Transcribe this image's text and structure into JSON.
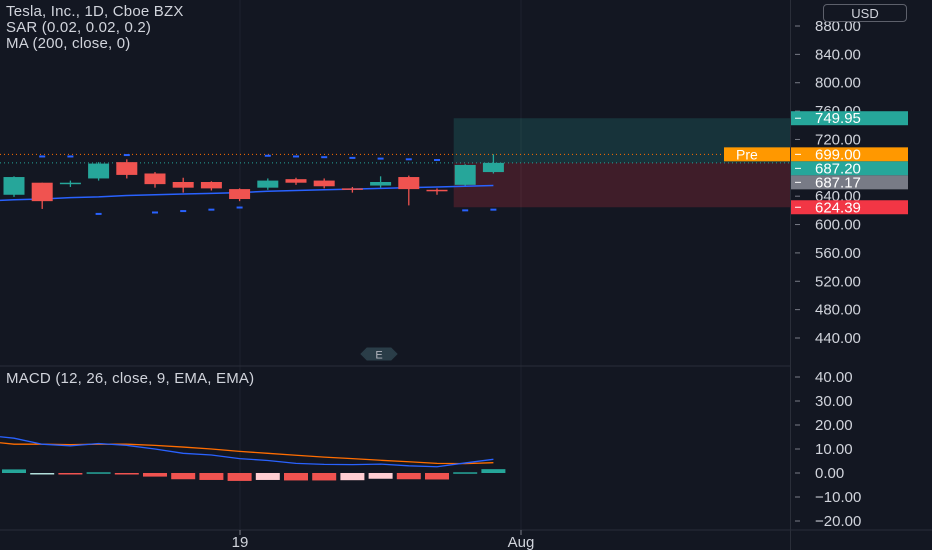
{
  "legend": {
    "symbol": "Tesla, Inc., 1D, Cboe BZX",
    "sar": "SAR (0.02, 0.02, 0.2)",
    "ma": "MA (200, close, 0)",
    "macd": "MACD (12, 26, close, 9, EMA, EMA)"
  },
  "currency": "USD",
  "earnings_marker": "E",
  "price_badges": [
    {
      "label": "749.95",
      "color": "#26a69a",
      "price": 749.95
    },
    {
      "label": "699.00",
      "prefix": "Pre",
      "color": "#ff9800",
      "price": 699.0
    },
    {
      "label": "687.20",
      "color": "#26a69a",
      "price": 687.2
    },
    {
      "label": "687.17",
      "color": "#787b86",
      "price": 687.17
    },
    {
      "label": "624.39",
      "color": "#f23645",
      "price": 624.39
    }
  ],
  "colors": {
    "up": "#26a69a",
    "down": "#f05350",
    "sar": "#2962ff",
    "ma": "#2962ff",
    "macd_line": "#2962ff",
    "signal_line": "#ff6d00",
    "target_zone": "#26a69a",
    "stop_zone": "#f23645"
  },
  "chart_data": [
    {
      "type": "candlestick",
      "y_ticks": [
        "880.00",
        "840.00",
        "800.00",
        "760.00",
        "720.00",
        "680.00",
        "640.00",
        "600.00",
        "560.00",
        "520.00",
        "480.00",
        "440.00"
      ],
      "ylim": [
        425,
        890
      ],
      "x_ticks": [
        "19",
        "Aug"
      ],
      "candles": [
        {
          "o": 642,
          "h": 668,
          "l": 639,
          "c": 667
        },
        {
          "o": 659,
          "h": 659,
          "l": 622,
          "c": 633
        },
        {
          "o": 657,
          "h": 662,
          "l": 653,
          "c": 659
        },
        {
          "o": 665,
          "h": 688,
          "l": 662,
          "c": 686
        },
        {
          "o": 688,
          "h": 692,
          "l": 665,
          "c": 670
        },
        {
          "o": 672,
          "h": 674,
          "l": 652,
          "c": 657
        },
        {
          "o": 660,
          "h": 666,
          "l": 645,
          "c": 652
        },
        {
          "o": 660,
          "h": 661,
          "l": 648,
          "c": 651
        },
        {
          "o": 650,
          "h": 651,
          "l": 633,
          "c": 636
        },
        {
          "o": 652,
          "h": 665,
          "l": 649,
          "c": 662
        },
        {
          "o": 664,
          "h": 666,
          "l": 656,
          "c": 659
        },
        {
          "o": 662,
          "h": 665,
          "l": 651,
          "c": 654
        },
        {
          "o": 651,
          "h": 653,
          "l": 645,
          "c": 650
        },
        {
          "o": 655,
          "h": 668,
          "l": 652,
          "c": 660
        },
        {
          "o": 667,
          "h": 669,
          "l": 627,
          "c": 650
        },
        {
          "o": 649,
          "h": 651,
          "l": 642,
          "c": 647
        },
        {
          "o": 656,
          "h": 685,
          "l": 655,
          "c": 684
        },
        {
          "o": 674,
          "h": 699,
          "l": 672,
          "c": 687
        }
      ],
      "sar_points": [
        null,
        696,
        696,
        615,
        698,
        617,
        619,
        621,
        624,
        697,
        696,
        695,
        694,
        693,
        692,
        691,
        620,
        621
      ],
      "ma_line": [
        635,
        636,
        638,
        639,
        641,
        642,
        643,
        644,
        645,
        647,
        648,
        649,
        650,
        651,
        652,
        653,
        654,
        655
      ],
      "position": {
        "entry": 687.2,
        "target": 749.95,
        "stop": 624.39,
        "start_index": 16
      },
      "pre_market": 699.0
    },
    {
      "type": "macd",
      "y_ticks": [
        "40.00",
        "30.00",
        "20.00",
        "10.00",
        "0.00",
        "−10.00",
        "−20.00"
      ],
      "ylim": [
        -23,
        42
      ],
      "macd": [
        14.5,
        12.0,
        11.3,
        12.3,
        11.5,
        10.0,
        8.2,
        7.5,
        6.0,
        5.2,
        4.0,
        3.6,
        3.5,
        3.7,
        3.0,
        2.6,
        4.2,
        5.7
      ],
      "signal": [
        12.0,
        12.0,
        11.8,
        12.0,
        12.0,
        11.5,
        10.8,
        10.0,
        9.0,
        8.2,
        7.4,
        6.6,
        6.0,
        5.3,
        4.7,
        4.0,
        3.9,
        4.3
      ],
      "histogram": [
        1.5,
        0.0,
        -0.6,
        0.3,
        -0.5,
        -1.5,
        -2.6,
        -2.9,
        -3.3,
        -2.9,
        -3.1,
        -3.1,
        -3.0,
        -2.4,
        -2.6,
        -2.7,
        0.3,
        1.6
      ]
    }
  ]
}
